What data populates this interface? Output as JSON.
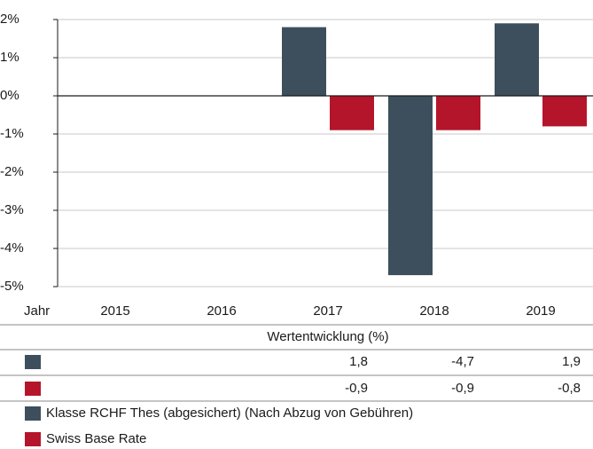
{
  "chart_data": {
    "type": "bar",
    "categories": [
      "2015",
      "2016",
      "2017",
      "2018",
      "2019"
    ],
    "x_label": "Jahr",
    "table_title": "Wertentwicklung (%)",
    "series": [
      {
        "name": "Klasse RCHF Thes (abgesichert) (Nach Abzug von Gebühren)",
        "color": "#3d4f5c",
        "values": [
          null,
          null,
          1.8,
          -4.7,
          1.9
        ],
        "value_labels": [
          null,
          null,
          "1,8",
          "-4,7",
          "1,9"
        ]
      },
      {
        "name": "Swiss Base Rate",
        "color": "#b5152b",
        "values": [
          null,
          null,
          -0.9,
          -0.9,
          -0.8
        ],
        "value_labels": [
          null,
          null,
          "-0,9",
          "-0,9",
          "-0,8"
        ]
      }
    ],
    "ylim": [
      -5,
      2
    ],
    "yticks": [
      {
        "value": 2,
        "label": "2%"
      },
      {
        "value": 1,
        "label": "1%"
      },
      {
        "value": 0,
        "label": "0%"
      },
      {
        "value": -1,
        "label": "-1%"
      },
      {
        "value": -2,
        "label": "-2%"
      },
      {
        "value": -3,
        "label": "-3%"
      },
      {
        "value": -4,
        "label": "-4%"
      },
      {
        "value": -5,
        "label": "-5%"
      }
    ],
    "grid": true
  }
}
